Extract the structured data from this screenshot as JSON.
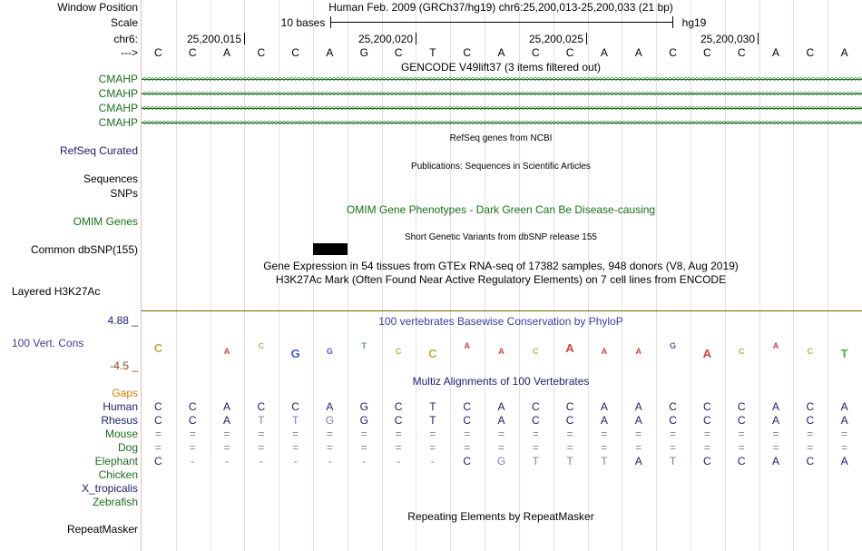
{
  "sidebar": {
    "window_position": "Window Position",
    "scale": "Scale",
    "chrom": "chr6:",
    "strand": "--->",
    "cmahp": [
      "CMAHP",
      "CMAHP",
      "CMAHP",
      "CMAHP"
    ],
    "refseq": "RefSeq Curated",
    "sequences": "Sequences",
    "snps": "SNPs",
    "omim": "OMIM Genes",
    "dbsnp": "Common dbSNP(155)",
    "h3k27ac": "Layered H3K27Ac",
    "cons_max": "4.88 _",
    "cons_label": "100 Vert. Cons",
    "cons_min": "-4.5 _",
    "gaps": "Gaps",
    "species": [
      "Human",
      "Rhesus",
      "Mouse",
      "Dog",
      "Elephant",
      "Chicken",
      "X_tropicalis",
      "Zebrafish"
    ],
    "repeatmasker": "RepeatMasker"
  },
  "header": {
    "title": "Human Feb. 2009 (GRCh37/hg19)   chr6:25,200,013-25,200,033 (21 bp)",
    "scale_label": "10 bases",
    "assembly": "hg19",
    "positions": [
      "25,200,015",
      "25,200,020",
      "25,200,025",
      "25,200,030"
    ]
  },
  "bases": [
    "C",
    "C",
    "A",
    "C",
    "C",
    "A",
    "G",
    "C",
    "T",
    "C",
    "A",
    "C",
    "C",
    "A",
    "A",
    "C",
    "C",
    "C",
    "A",
    "C",
    "A"
  ],
  "tracks": {
    "gencode": "GENCODE V49lift37 (3 items filtered out)",
    "refseq_desc": "RefSeq genes from NCBI",
    "publications_desc": "Publications: Sequences in Scientific Articles",
    "omim_desc": "OMIM Gene Phenotypes - Dark Green Can Be Disease-causing",
    "dbsnp_desc": "Short Genetic Variants from dbSNP release 155",
    "gtex_desc": "Gene Expression in 54 tissues from GTEx RNA-seq of 17382 samples, 948 donors (V8, Aug 2019)",
    "h3k27ac_desc": "H3K27Ac Mark (Often Found Near Active Regulatory Elements) on 7 cell lines from ENCODE",
    "phylop_desc": "100 vertebrates Basewise Conservation by PhyloP",
    "multiz_desc": "Multiz Alignments of 100 Vertebrates",
    "repeat_desc": "Repeating Elements by RepeatMasker"
  },
  "alignments": {
    "Human": [
      "C",
      "C",
      "A",
      "C",
      "C",
      "A",
      "G",
      "C",
      "T",
      "C",
      "A",
      "C",
      "C",
      "A",
      "A",
      "C",
      "C",
      "C",
      "A",
      "C",
      "A"
    ],
    "Rhesus": [
      "C",
      "C",
      "A",
      "T",
      "T",
      "G",
      "G",
      "C",
      "T",
      "C",
      "A",
      "C",
      "C",
      "A",
      "A",
      "C",
      "C",
      "C",
      "A",
      "C",
      "A"
    ],
    "Mouse": [
      "=",
      "=",
      "=",
      "=",
      "=",
      "=",
      "=",
      "=",
      "=",
      "=",
      "=",
      "=",
      "=",
      "=",
      "=",
      "=",
      "=",
      "=",
      "=",
      "=",
      "="
    ],
    "Dog": [
      "=",
      "=",
      "=",
      "=",
      "=",
      "=",
      "=",
      "=",
      "=",
      "=",
      "=",
      "=",
      "=",
      "=",
      "=",
      "=",
      "=",
      "=",
      "=",
      "=",
      "="
    ],
    "Elephant": [
      "C",
      "-",
      "-",
      "-",
      "-",
      "-",
      "-",
      "-",
      "-",
      "C",
      "G",
      "T",
      "T",
      "T",
      "A",
      "T",
      "C",
      "C",
      "A",
      "C",
      "A"
    ]
  },
  "phylop_logo": [
    "C",
    "",
    "A",
    "C",
    "G",
    "G",
    "T",
    "C",
    "C",
    "A",
    "A",
    "C",
    "A",
    "A",
    "A",
    "G",
    "A",
    "C",
    "A",
    "C",
    "T"
  ],
  "colors": {
    "gene_green": "#1a6e1a",
    "navy": "#1c1c6e",
    "blue_text": "#3c3ca0",
    "gaps_orange": "#d08000",
    "brown": "#8b4513",
    "mismatch": "#7c7cae"
  }
}
